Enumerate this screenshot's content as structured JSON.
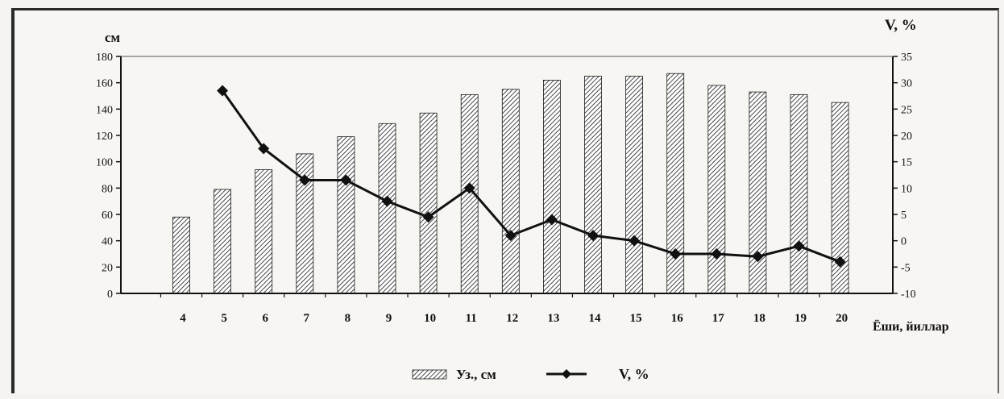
{
  "chart_data": {
    "type": "bar+line",
    "categories": [
      "4",
      "5",
      "6",
      "7",
      "8",
      "9",
      "10",
      "11",
      "12",
      "13",
      "14",
      "15",
      "16",
      "17",
      "18",
      "19",
      "20"
    ],
    "series": [
      {
        "name": "Уз., см",
        "type": "bar",
        "axis": "left",
        "values": [
          58,
          79,
          94,
          106,
          119,
          129,
          137,
          151,
          155,
          162,
          165,
          165,
          167,
          158,
          153,
          151,
          145
        ]
      },
      {
        "name": "V, %",
        "type": "line",
        "axis": "right",
        "values": [
          null,
          28.5,
          17.5,
          11.5,
          11.5,
          7.5,
          4.5,
          10,
          1,
          4,
          1,
          0,
          -2.5,
          -2.5,
          -3,
          -1,
          -4
        ]
      }
    ],
    "ylabel_left": "см",
    "ylabel_right": "V, %",
    "xlabel": "Ёши, йиллар",
    "ylim_left": [
      0,
      180
    ],
    "ylim_right": [
      -10,
      35
    ],
    "yticks_left": [
      "0",
      "20",
      "40",
      "60",
      "80",
      "100",
      "120",
      "140",
      "160",
      "180"
    ],
    "yticks_right": [
      "-10",
      "-5",
      "0",
      "5",
      "10",
      "15",
      "20",
      "25",
      "30",
      "35"
    ],
    "grid": false,
    "legend_position": "bottom",
    "colors": {
      "bar_hatch": "#1a1a1a",
      "bar_fill": "#ffffff",
      "line": "#111111",
      "axis": "#111111"
    }
  }
}
